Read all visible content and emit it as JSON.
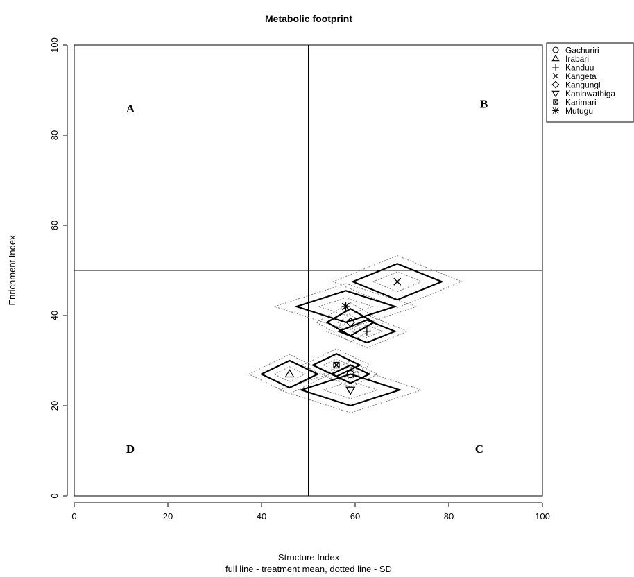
{
  "chart_data": {
    "type": "scatter",
    "title": "Metabolic footprint",
    "xlabel": "Structure Index",
    "xlabel_note": "full line - treatment mean, dotted line - SD",
    "ylabel": "Enrichment Index",
    "xlim": [
      0,
      100
    ],
    "ylim": [
      0,
      100
    ],
    "xticks": [
      "0",
      "20",
      "40",
      "60",
      "80",
      "100"
    ],
    "yticks": [
      "0",
      "20",
      "40",
      "60",
      "80",
      "100"
    ],
    "reference_lines": {
      "x": 50,
      "y": 50
    },
    "quadrants": [
      {
        "label": "A",
        "x": 12,
        "y": 86
      },
      {
        "label": "B",
        "x": 87.5,
        "y": 87
      },
      {
        "label": "C",
        "x": 86.5,
        "y": 10.5
      },
      {
        "label": "D",
        "x": 12,
        "y": 10.5
      }
    ],
    "legend_position": "top-right, outside plot",
    "series": [
      {
        "name": "Gachuriri",
        "marker": "circle",
        "x": 59.0,
        "y": 27.0,
        "sd_x": 4.0,
        "sd_y": 2.0
      },
      {
        "name": "Irabari",
        "marker": "triangle-up",
        "x": 46.0,
        "y": 27.0,
        "sd_x": 6.0,
        "sd_y": 3.0
      },
      {
        "name": "Kanduu",
        "marker": "plus",
        "x": 62.5,
        "y": 36.5,
        "sd_x": 6.0,
        "sd_y": 2.5
      },
      {
        "name": "Kangeta",
        "marker": "x",
        "x": 69.0,
        "y": 47.5,
        "sd_x": 9.5,
        "sd_y": 4.0
      },
      {
        "name": "Kangungi",
        "marker": "diamond",
        "x": 59.0,
        "y": 38.5,
        "sd_x": 5.0,
        "sd_y": 3.0
      },
      {
        "name": "Kaninwathiga",
        "marker": "triangle-down",
        "x": 59.0,
        "y": 23.5,
        "sd_x": 10.5,
        "sd_y": 3.5
      },
      {
        "name": "Karimari",
        "marker": "square-x",
        "x": 56.0,
        "y": 29.0,
        "sd_x": 5.0,
        "sd_y": 2.5
      },
      {
        "name": "Mutugu",
        "marker": "asterisk",
        "x": 58.0,
        "y": 42.0,
        "sd_x": 10.5,
        "sd_y": 3.5
      }
    ]
  }
}
